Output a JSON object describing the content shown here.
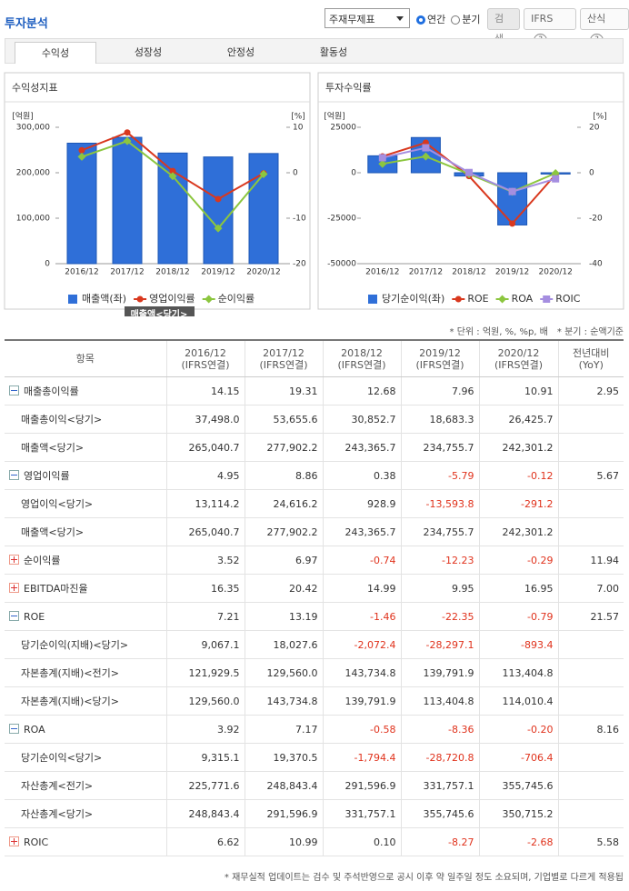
{
  "header": {
    "title": "투자분석",
    "select": "주재무제표",
    "radios": [
      "연간",
      "분기"
    ],
    "checked": 0,
    "buttons": [
      "검색",
      "IFRS",
      "산식"
    ]
  },
  "tabs": [
    "수익성",
    "성장성",
    "안정성",
    "활동성"
  ],
  "active_tab": 0,
  "chart_data": [
    {
      "type": "combo",
      "title": "수익성지표",
      "y_unit": "[억원]",
      "y2_unit": "[%]",
      "categories": [
        "2016/12",
        "2017/12",
        "2018/12",
        "2019/12",
        "2020/12"
      ],
      "ylim": [
        0,
        300000
      ],
      "yticks": [
        {
          "value": 0,
          "label": "0"
        },
        {
          "value": 100000,
          "label": "100,000"
        },
        {
          "value": 200000,
          "label": "200,000"
        },
        {
          "value": 300000,
          "label": "300,000"
        }
      ],
      "y2lim": [
        -20,
        10
      ],
      "y2ticks": [
        -20,
        -10,
        0,
        10
      ],
      "series": [
        {
          "name": "매출액(좌)",
          "type": "bar",
          "color": "#2f6fd8",
          "values": [
            265040.7,
            277902.2,
            243365.7,
            234755.7,
            242301.2
          ]
        },
        {
          "name": "영업이익률",
          "type": "line",
          "marker": "circle",
          "color": "#d9381e",
          "axis": "y2",
          "values": [
            4.95,
            8.86,
            0.38,
            -5.79,
            -0.12
          ]
        },
        {
          "name": "순이익률",
          "type": "line",
          "marker": "diamond",
          "color": "#8cc63f",
          "axis": "y2",
          "values": [
            3.52,
            6.97,
            -0.74,
            -12.23,
            -0.29
          ]
        }
      ],
      "tooltip": "매출액<당기>"
    },
    {
      "type": "combo",
      "title": "투자수익률",
      "y_unit": "[억원]",
      "y2_unit": "[%]",
      "categories": [
        "2016/12",
        "2017/12",
        "2018/12",
        "2019/12",
        "2020/12"
      ],
      "ylim": [
        -50000,
        25000
      ],
      "yticks": [
        -50000,
        -25000,
        0,
        25000
      ],
      "y2lim": [
        -40,
        20
      ],
      "y2ticks": [
        -40,
        -20,
        0,
        20
      ],
      "series": [
        {
          "name": "당기순이익(좌)",
          "type": "bar",
          "color": "#2f6fd8",
          "values": [
            9315.1,
            19370.5,
            -1794.4,
            -28720.8,
            -706.4
          ]
        },
        {
          "name": "ROE",
          "type": "line",
          "marker": "circle",
          "color": "#d9381e",
          "axis": "y2",
          "values": [
            7.21,
            13.19,
            -1.46,
            -22.35,
            -0.79
          ]
        },
        {
          "name": "ROA",
          "type": "line",
          "marker": "diamond",
          "color": "#8cc63f",
          "axis": "y2",
          "values": [
            3.92,
            7.17,
            -0.58,
            -8.36,
            -0.2
          ]
        },
        {
          "name": "ROIC",
          "type": "line",
          "marker": "square",
          "color": "#a58ee0",
          "axis": "y2",
          "values": [
            6.62,
            10.99,
            0.1,
            -8.27,
            -2.68
          ]
        }
      ]
    }
  ],
  "notes": [
    "* 단위 : 억원, %, %p, 배",
    "* 분기 : 순액기준"
  ],
  "table": {
    "columns": [
      [
        "항목"
      ],
      [
        "2016/12",
        "(IFRS연결)"
      ],
      [
        "2017/12",
        "(IFRS연결)"
      ],
      [
        "2018/12",
        "(IFRS연결)"
      ],
      [
        "2019/12",
        "(IFRS연결)"
      ],
      [
        "2020/12",
        "(IFRS연결)"
      ],
      [
        "전년대비",
        "(YoY)"
      ]
    ],
    "rows": [
      {
        "label": "매출총이익률",
        "toggle": "collapse",
        "values": [
          "14.15",
          "19.31",
          "12.68",
          "7.96",
          "10.91"
        ],
        "yoy": "2.95"
      },
      {
        "label": "매출총이익<당기>",
        "values": [
          "37,498.0",
          "53,655.6",
          "30,852.7",
          "18,683.3",
          "26,425.7"
        ],
        "yoy": null
      },
      {
        "label": "매출액<당기>",
        "values": [
          "265,040.7",
          "277,902.2",
          "243,365.7",
          "234,755.7",
          "242,301.2"
        ],
        "yoy": null
      },
      {
        "label": "영업이익률",
        "toggle": "collapse",
        "values": [
          "4.95",
          "8.86",
          "0.38",
          "-5.79",
          "-0.12"
        ],
        "yoy": "5.67"
      },
      {
        "label": "영업이익<당기>",
        "values": [
          "13,114.2",
          "24,616.2",
          "928.9",
          "-13,593.8",
          "-291.2"
        ],
        "yoy": null
      },
      {
        "label": "매출액<당기>",
        "values": [
          "265,040.7",
          "277,902.2",
          "243,365.7",
          "234,755.7",
          "242,301.2"
        ],
        "yoy": null
      },
      {
        "label": "순이익률",
        "toggle": "expand",
        "values": [
          "3.52",
          "6.97",
          "-0.74",
          "-12.23",
          "-0.29"
        ],
        "yoy": "11.94"
      },
      {
        "label": "EBITDA마진율",
        "toggle": "expand",
        "values": [
          "16.35",
          "20.42",
          "14.99",
          "9.95",
          "16.95"
        ],
        "yoy": "7.00"
      },
      {
        "label": "ROE",
        "toggle": "collapse",
        "values": [
          "7.21",
          "13.19",
          "-1.46",
          "-22.35",
          "-0.79"
        ],
        "yoy": "21.57"
      },
      {
        "label": "당기순이익(지배)<당기>",
        "values": [
          "9,067.1",
          "18,027.6",
          "-2,072.4",
          "-28,297.1",
          "-893.4"
        ],
        "yoy": null
      },
      {
        "label": "자본총계(지배)<전기>",
        "values": [
          "121,929.5",
          "129,560.0",
          "143,734.8",
          "139,791.9",
          "113,404.8"
        ],
        "yoy": null
      },
      {
        "label": "자본총계(지배)<당기>",
        "values": [
          "129,560.0",
          "143,734.8",
          "139,791.9",
          "113,404.8",
          "114,010.4"
        ],
        "yoy": null
      },
      {
        "label": "ROA",
        "toggle": "collapse",
        "values": [
          "3.92",
          "7.17",
          "-0.58",
          "-8.36",
          "-0.20"
        ],
        "yoy": "8.16"
      },
      {
        "label": "당기순이익<당기>",
        "values": [
          "9,315.1",
          "19,370.5",
          "-1,794.4",
          "-28,720.8",
          "-706.4"
        ],
        "yoy": null
      },
      {
        "label": "자산총계<전기>",
        "values": [
          "225,771.6",
          "248,843.4",
          "291,596.9",
          "331,757.1",
          "355,745.6"
        ],
        "yoy": null
      },
      {
        "label": "자산총계<당기>",
        "values": [
          "248,843.4",
          "291,596.9",
          "331,757.1",
          "355,745.6",
          "350,715.2"
        ],
        "yoy": null
      },
      {
        "label": "ROIC",
        "toggle": "expand",
        "values": [
          "6.62",
          "10.99",
          "0.10",
          "-8.27",
          "-2.68"
        ],
        "yoy": "5.58"
      }
    ]
  },
  "footer": "* 재무실적 업데이트는 검수 및 주석반영으로 공시 이후 약 일주일 정도 소요되며, 기업별로 다르게 적용됩"
}
